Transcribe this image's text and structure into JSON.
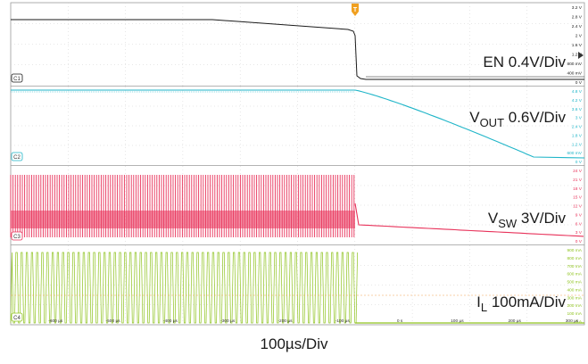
{
  "chart_data": [
    {
      "type": "line",
      "channel_badge": "C1",
      "label_main": "EN 0.4V/Div",
      "label_sub": "",
      "label_tail": "",
      "color": "#1a1a1a",
      "y_ticks": [
        "3.2 V",
        "2.8 V",
        "2.4 V",
        "2 V",
        "1.6 V",
        "1.2 V",
        "800 mV",
        "400 mV",
        "0 V"
      ],
      "waveform": "EN falls from ~3.2 V to ~0.05 V at t=0"
    },
    {
      "type": "line",
      "channel_badge": "C2",
      "label_main": "V",
      "label_sub": "OUT",
      "label_tail": " 0.6V/Div",
      "color": "#1fb5c8",
      "y_ticks": [
        "4.8 V",
        "4.2 V",
        "3.6 V",
        "3 V",
        "2.4 V",
        "1.8 V",
        "1.2 V",
        "600 mV",
        "0 V"
      ],
      "waveform": "VOUT ~4.8 V, decays after t=0"
    },
    {
      "type": "line",
      "channel_badge": "C3",
      "label_main": "V",
      "label_sub": "SW",
      "label_tail": " 3V/Div",
      "color": "#e8325a",
      "y_ticks": [
        "24 V",
        "21 V",
        "18 V",
        "15 V",
        "12 V",
        "9 V",
        "6 V",
        "3 V",
        "0 V"
      ],
      "waveform": "VSW switching 0–~20 V until t=0, then decays"
    },
    {
      "type": "line",
      "channel_badge": "C4",
      "label_main": "I",
      "label_sub": "L",
      "label_tail": " 100mA/Div",
      "color": "#8fc31f",
      "y_ticks": [
        "900 mA",
        "800 mA",
        "700 mA",
        "600 mA",
        "500 mA",
        "400 mA",
        "300 mA",
        "200 mA",
        "100 mA",
        "0 A"
      ],
      "x_ticks": [
        "-600 µs",
        "-500 µs",
        "-400 µs",
        "-300 µs",
        "-200 µs",
        "-100 µs",
        "0 s",
        "100 µs",
        "200 µs",
        "300 µs",
        "400 µs"
      ],
      "waveform": "IL triangular ripple up to ~900 mA until t=0, then 0"
    }
  ],
  "time_scale": "100µs/Div",
  "trigger_marker": "T",
  "colors": {
    "en": "#1a1a1a",
    "vout": "#1fb5c8",
    "vsw": "#e8325a",
    "il": "#8fc31f",
    "trigger": "#f0a020"
  }
}
